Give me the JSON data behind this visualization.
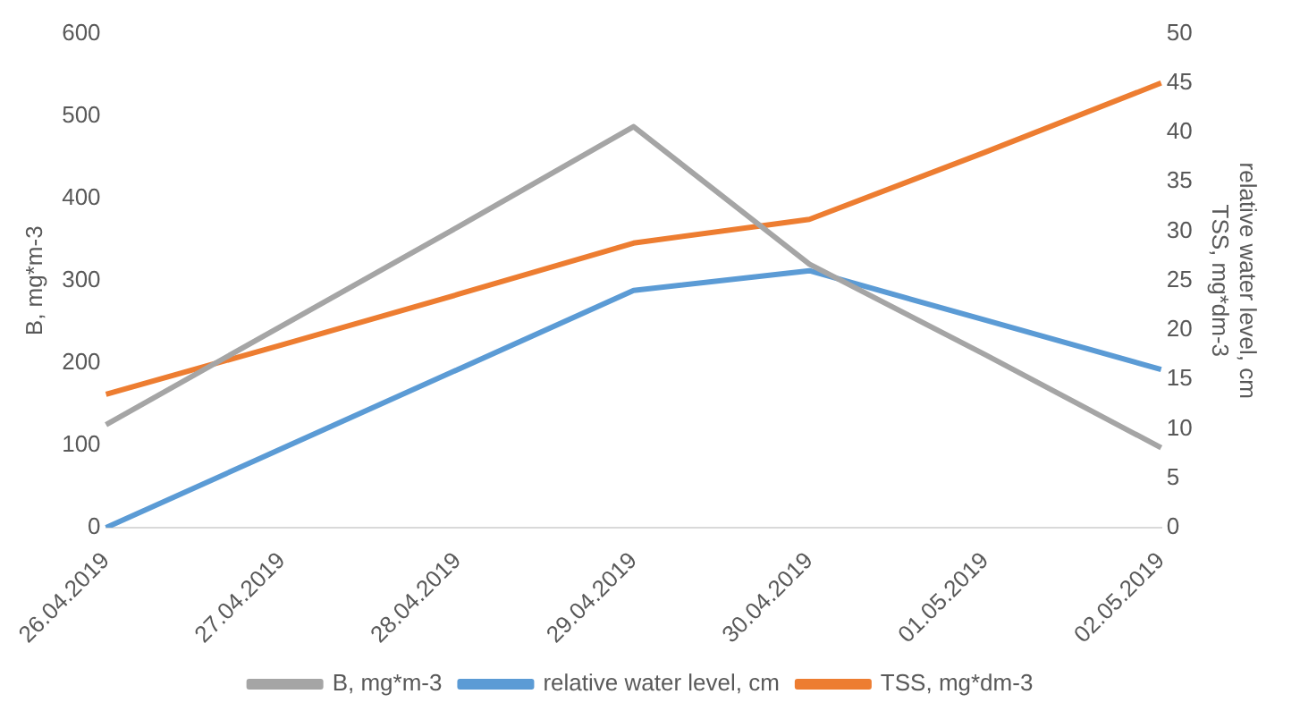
{
  "chart_data": {
    "type": "line",
    "categories": [
      "26.04.2019",
      "27.04.2019",
      "28.04.2019",
      "29.04.2019",
      "30.04.2019",
      "01.05.2019",
      "02.05.2019"
    ],
    "ylabel": "B, mg*m-3",
    "y2label": "relative water level, cm\nTSS, mg*dm-3",
    "series": [
      {
        "name": "B, mg*m-3",
        "color": "#a5a5a5",
        "values": [
          125,
          245,
          365,
          487,
          320,
          210,
          97
        ]
      },
      {
        "name": "relative water level, cm",
        "color": "#5b9bd5",
        "axis": "y2",
        "values": [
          0,
          8,
          16,
          24,
          26,
          21,
          16
        ]
      },
      {
        "name": "TSS, mg*dm-3",
        "color": "#ed7d31",
        "axis": "y2",
        "values": [
          13.5,
          18.5,
          23.6,
          28.8,
          31.2,
          38,
          45
        ]
      }
    ],
    "ylim": [
      0,
      600
    ],
    "yticks": [
      0,
      100,
      200,
      300,
      400,
      500,
      600
    ],
    "y2lim": [
      0,
      50
    ],
    "y2ticks": [
      0,
      5,
      10,
      15,
      20,
      25,
      30,
      35,
      40,
      45,
      50
    ],
    "legend": "bottom",
    "marker": "none",
    "line_style": "solid",
    "grid": false
  }
}
